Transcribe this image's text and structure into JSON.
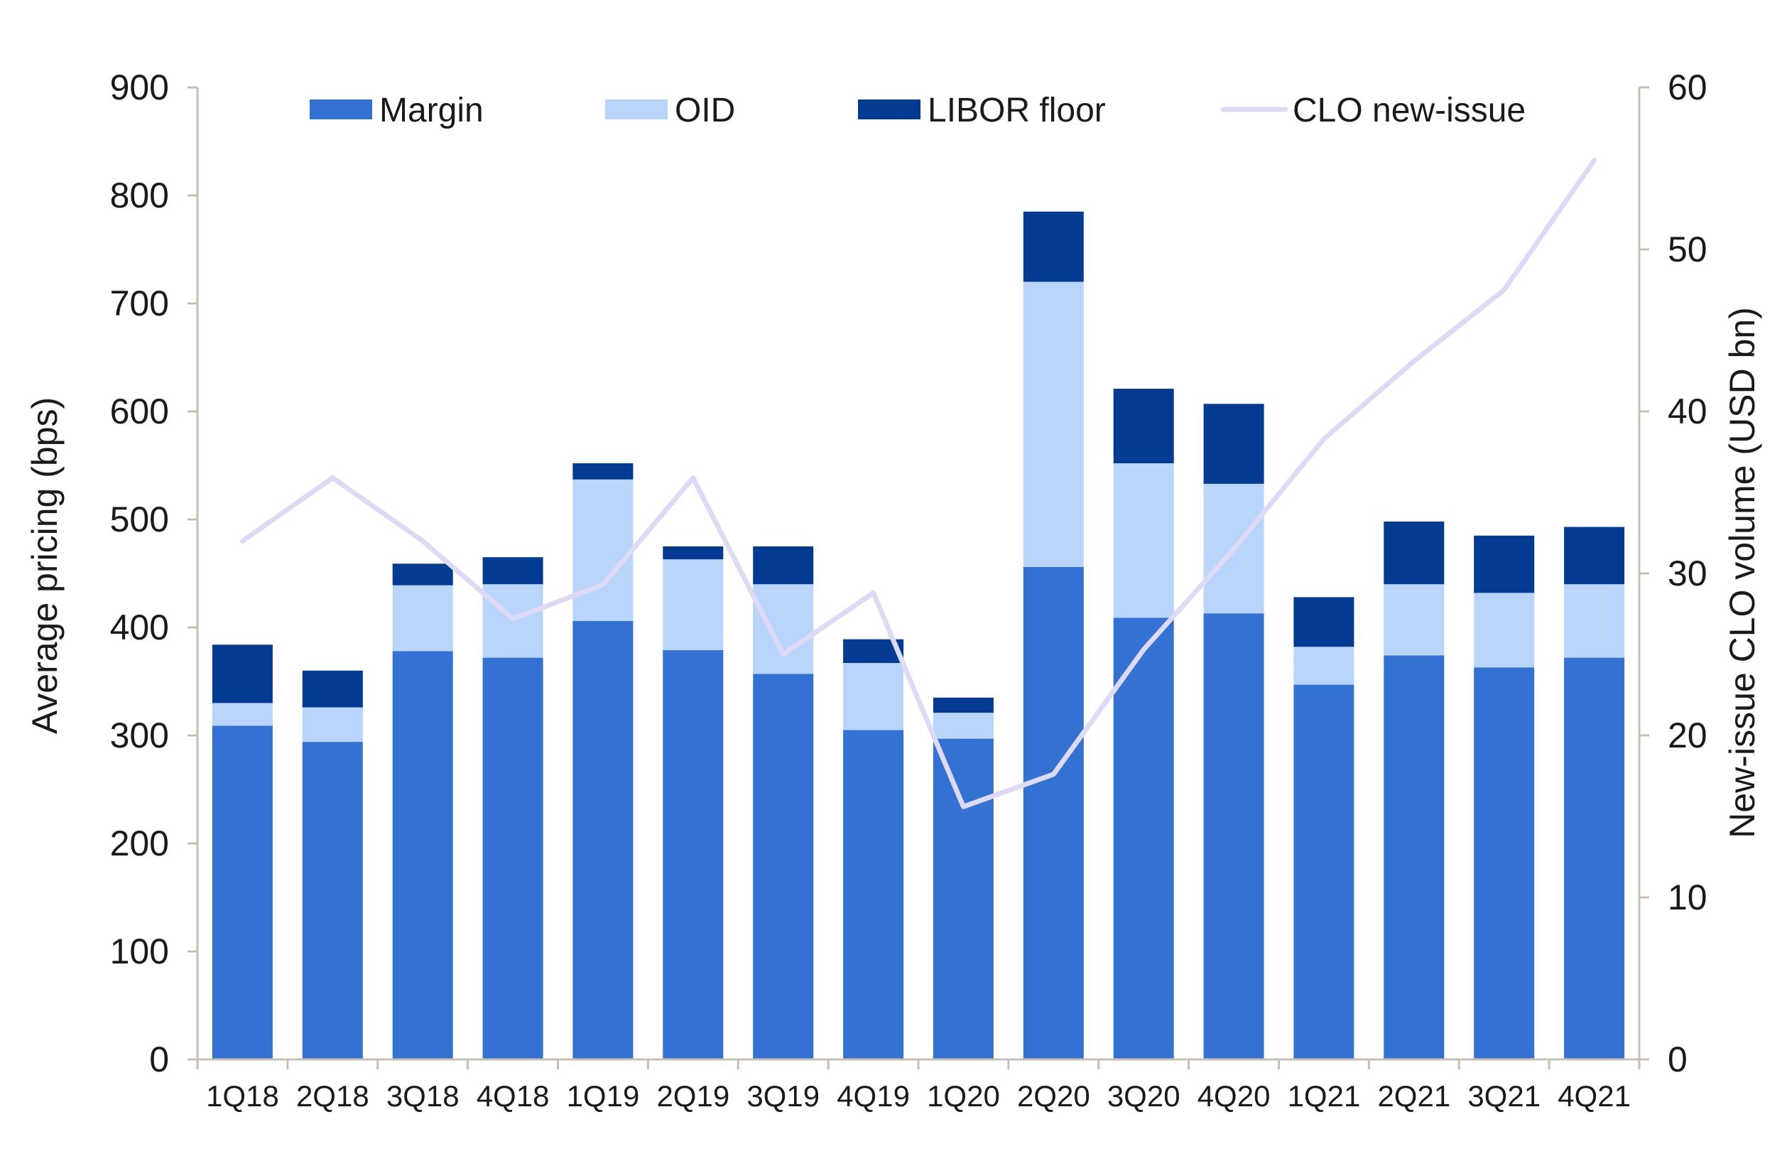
{
  "chart_data": {
    "type": "bar",
    "stacked": true,
    "categories": [
      "1Q18",
      "2Q18",
      "3Q18",
      "4Q18",
      "1Q19",
      "2Q19",
      "3Q19",
      "4Q19",
      "1Q20",
      "2Q20",
      "3Q20",
      "4Q20",
      "1Q21",
      "2Q21",
      "3Q21",
      "4Q21"
    ],
    "series": [
      {
        "name": "Margin",
        "type": "bar",
        "axis": "left",
        "color": "#3372D3",
        "values": [
          309,
          294,
          378,
          372,
          406,
          379,
          357,
          305,
          297,
          456,
          409,
          413,
          347,
          374,
          363,
          372
        ]
      },
      {
        "name": "OID",
        "type": "bar",
        "axis": "left",
        "color": "#B9D5FC",
        "values": [
          21,
          32,
          61,
          68,
          131,
          84,
          83,
          62,
          24,
          264,
          143,
          120,
          35,
          66,
          69,
          68
        ]
      },
      {
        "name": "LIBOR floor",
        "type": "bar",
        "axis": "left",
        "color": "#033B93",
        "values": [
          54,
          34,
          20,
          25,
          15,
          12,
          35,
          22,
          14,
          65,
          69,
          74,
          46,
          58,
          53,
          53
        ]
      },
      {
        "name": "CLO new-issue",
        "type": "line",
        "axis": "right",
        "color": "#DCDAF5",
        "values": [
          32.0,
          35.9,
          32.0,
          27.2,
          29.3,
          35.9,
          25.0,
          28.8,
          15.6,
          17.6,
          25.3,
          31.5,
          38.3,
          43.1,
          47.5,
          55.5
        ]
      }
    ],
    "xlabel": "",
    "ylabel": "Average pricing (bps)",
    "y2label": "New-issue CLO volume (USD bn)",
    "ylim": [
      0,
      900
    ],
    "y2lim": [
      0,
      60
    ],
    "yticks": [
      "0",
      "100",
      "200",
      "300",
      "400",
      "500",
      "600",
      "700",
      "800",
      "900"
    ],
    "y2ticks": [
      "0",
      "10",
      "20",
      "30",
      "40",
      "50",
      "60"
    ],
    "grid": false,
    "legend": "top"
  },
  "colors": {
    "axis": "#C8BFB0",
    "text": "#1a1a1a"
  }
}
